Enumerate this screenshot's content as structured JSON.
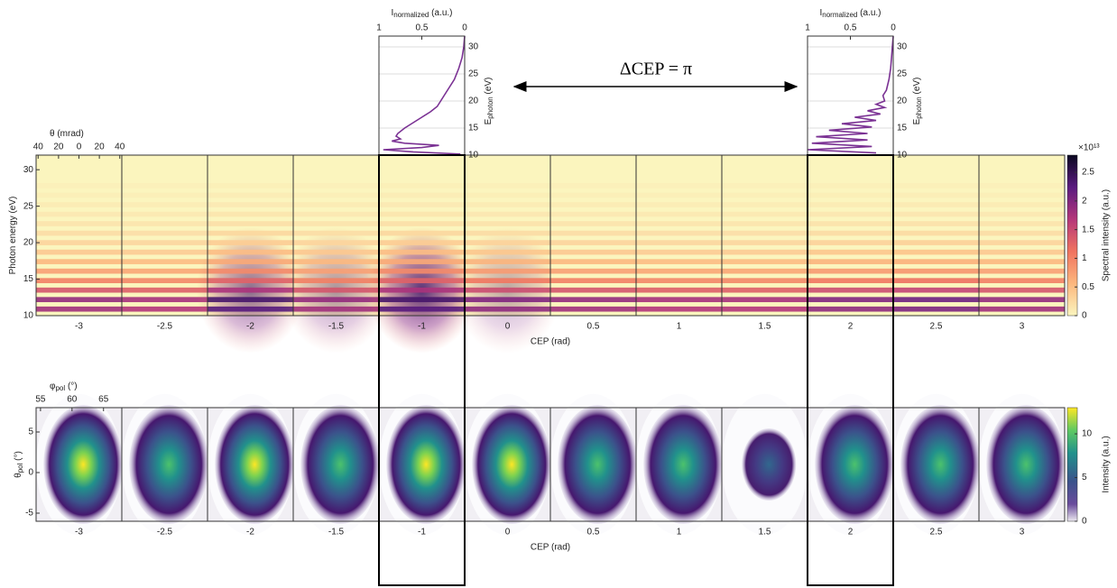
{
  "chart_data": [
    {
      "type": "heatmap",
      "annotation": "ΔCEP = π",
      "xlabel": "CEP (rad)",
      "ylabel": "Photon energy (eV)",
      "categories": [
        "-3",
        "-2.5",
        "-2",
        "-1.5",
        "-1",
        "0",
        "0.5",
        "1",
        "1.5",
        "2",
        "2.5",
        "3"
      ],
      "ylim": [
        10,
        32
      ],
      "yticks": [
        10,
        15,
        20,
        25,
        30
      ],
      "top_axis": {
        "label": "θ (mrad)",
        "xlim": [
          -42,
          42
        ],
        "xticks": [
          {
            "value": -40,
            "label": "40"
          },
          {
            "value": -20,
            "label": "20"
          },
          0,
          20,
          40
        ]
      },
      "colorbar": {
        "label": "Spectral intensity (a.u.)",
        "scale_label": "×10¹³",
        "clim": [
          0,
          2.8
        ],
        "ticks": [
          0,
          0.5,
          1,
          1.5,
          2,
          2.5
        ]
      }
    },
    {
      "type": "heatmap",
      "xlabel": "CEP (rad)",
      "ylabel": "θ",
      "ylabel_sub": "pol",
      "ylabel_unit": "(°)",
      "categories": [
        "-3",
        "-2.5",
        "-2",
        "-1.5",
        "-1",
        "0",
        "0.5",
        "1",
        "1.5",
        "2",
        "2.5",
        "3"
      ],
      "ylim": [
        -6,
        8
      ],
      "yticks": [
        -5,
        0,
        5
      ],
      "top_axis": {
        "label": "φ",
        "label_sub": "pol",
        "label_unit": "(°)",
        "xlim": [
          54.3,
          67.9
        ],
        "xticks": [
          55,
          60,
          65
        ]
      },
      "colorbar": {
        "label": "Intensity (a.u.)",
        "clim": [
          0,
          13
        ],
        "ticks": [
          0,
          5,
          10
        ]
      }
    },
    {
      "type": "line",
      "xlabel": "I",
      "xlabel_sub": "normalized",
      "xlabel_unit": "(a.u.)",
      "ylabel": "E",
      "ylabel_sub": "photon",
      "ylabel_unit": "(eV)",
      "xlim": [
        1,
        0
      ],
      "xticks": [
        1,
        0.5,
        0
      ],
      "ylim": [
        10,
        32
      ],
      "yticks": [
        10,
        15,
        20,
        25,
        30
      ],
      "color": "#7b3294",
      "x": [
        10.2,
        10.6,
        11,
        11.4,
        11.8,
        12.2,
        12.6,
        13,
        13.5,
        14,
        15,
        16,
        17,
        18,
        19,
        20,
        22,
        24,
        26,
        28,
        30,
        32
      ],
      "values": [
        0.05,
        0.6,
        0.95,
        0.5,
        0.3,
        0.7,
        0.85,
        0.75,
        0.8,
        0.78,
        0.7,
        0.6,
        0.5,
        0.4,
        0.32,
        0.28,
        0.2,
        0.12,
        0.07,
        0.03,
        0.01,
        0
      ]
    },
    {
      "type": "line",
      "xlabel": "I",
      "xlabel_sub": "normalized",
      "xlabel_unit": "(a.u.)",
      "ylabel": "E",
      "ylabel_sub": "photon",
      "ylabel_unit": "(eV)",
      "xlim": [
        1,
        0
      ],
      "xticks": [
        1,
        0.5,
        0
      ],
      "ylim": [
        10,
        32
      ],
      "yticks": [
        10,
        15,
        20,
        25,
        30
      ],
      "color": "#7b3294",
      "x": [
        10.4,
        11,
        11.6,
        12.2,
        12.8,
        13.4,
        14,
        14.6,
        15.2,
        15.8,
        16.4,
        17,
        17.6,
        18.2,
        18.8,
        19.4,
        20,
        21,
        22,
        24,
        26,
        28,
        30,
        32
      ],
      "values": [
        0.2,
        1,
        0.25,
        0.95,
        0.3,
        0.9,
        0.3,
        0.75,
        0.25,
        0.6,
        0.2,
        0.45,
        0.15,
        0.3,
        0.1,
        0.2,
        0.1,
        0.12,
        0.08,
        0.05,
        0.03,
        0.02,
        0.01,
        0
      ]
    }
  ]
}
